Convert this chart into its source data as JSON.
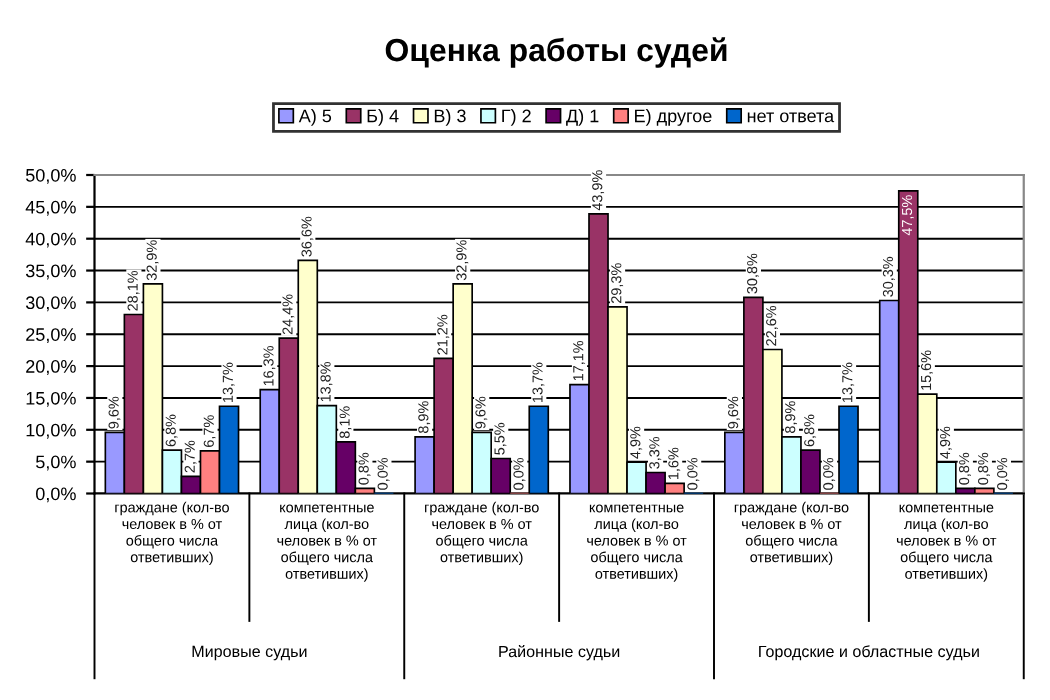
{
  "chart_data": {
    "type": "bar",
    "title": "Оценка работы судей",
    "categories": [
      "граждане (кол-во\nчеловек в % от\nобщего числа\nответивших)",
      "компетентные\nлица (кол-во\nчеловек в % от\nобщего числа\nответивших)",
      "граждане (кол-во\nчеловек в % от\nобщего числа\nответивших)",
      "компетентные\nлица (кол-во\nчеловек в % от\nобщего числа\nответивших)",
      "граждане (кол-во\nчеловек в % от\nобщего числа\nответивших)",
      "компетентные\nлица (кол-во\nчеловек в % от\nобщего числа\nответивших)"
    ],
    "annotations": [
      "Мировые судьи",
      "Районные судьи",
      "Городские и областные судьи"
    ],
    "series": [
      {
        "name": "А) 5",
        "color": "#9999ff",
        "values": [
          9.6,
          16.3,
          8.9,
          17.1,
          9.6,
          30.3
        ],
        "value_labels": [
          "9,6%",
          "16,3%",
          "8,9%",
          "17,1%",
          "9,6%",
          "30,3%"
        ]
      },
      {
        "name": "Б) 4",
        "color": "#993366",
        "values": [
          28.1,
          24.4,
          21.2,
          43.9,
          30.8,
          47.5
        ],
        "value_labels": [
          "28,1%",
          "24,4%",
          "21,2%",
          "43,9%",
          "30,8%",
          "47,5%"
        ]
      },
      {
        "name": "В) 3",
        "color": "#ffffcc",
        "values": [
          32.9,
          36.6,
          32.9,
          29.3,
          22.6,
          15.6
        ],
        "value_labels": [
          "32,9%",
          "36,6%",
          "32,9%",
          "29,3%",
          "22,6%",
          "15,6%"
        ]
      },
      {
        "name": "Г) 2",
        "color": "#ccffff",
        "values": [
          6.8,
          13.8,
          9.6,
          4.9,
          8.9,
          4.9
        ],
        "value_labels": [
          "6,8%",
          "13,8%",
          "9,6%",
          "4,9%",
          "8,9%",
          "4,9%"
        ]
      },
      {
        "name": "Д) 1",
        "color": "#660066",
        "values": [
          2.7,
          8.1,
          5.5,
          3.3,
          6.8,
          0.8
        ],
        "value_labels": [
          "2,7%",
          "8,1%",
          "5,5%",
          "3,3%",
          "6,8%",
          "0,8%"
        ]
      },
      {
        "name": "Е) другое",
        "color": "#ff8080",
        "values": [
          6.7,
          0.8,
          0.0,
          1.6,
          0.0,
          0.8
        ],
        "value_labels": [
          "6,7%",
          "0,8%",
          "0,0%",
          "1,6%",
          "0,0%",
          "0,8%"
        ]
      },
      {
        "name": "нет ответа",
        "color": "#0066cc",
        "values": [
          13.7,
          0.0,
          13.7,
          0.0,
          13.7,
          0.0
        ],
        "value_labels": [
          "13,7%",
          "0,0%",
          "13,7%",
          "0,0%",
          "13,7%",
          "0,0%"
        ]
      }
    ],
    "ylim": [
      0,
      50
    ],
    "yticks": [
      {
        "value": 0,
        "label": "0,0%"
      },
      {
        "value": 5,
        "label": "5,0%"
      },
      {
        "value": 10,
        "label": "10,0%"
      },
      {
        "value": 15,
        "label": "15,0%"
      },
      {
        "value": 20,
        "label": "20,0%"
      },
      {
        "value": 25,
        "label": "25,0%"
      },
      {
        "value": 30,
        "label": "30,0%"
      },
      {
        "value": 35,
        "label": "35,0%"
      },
      {
        "value": 40,
        "label": "40,0%"
      },
      {
        "value": 45,
        "label": "45,0%"
      },
      {
        "value": 50,
        "label": "50,0%"
      }
    ],
    "grid": "y",
    "legend": "top"
  }
}
